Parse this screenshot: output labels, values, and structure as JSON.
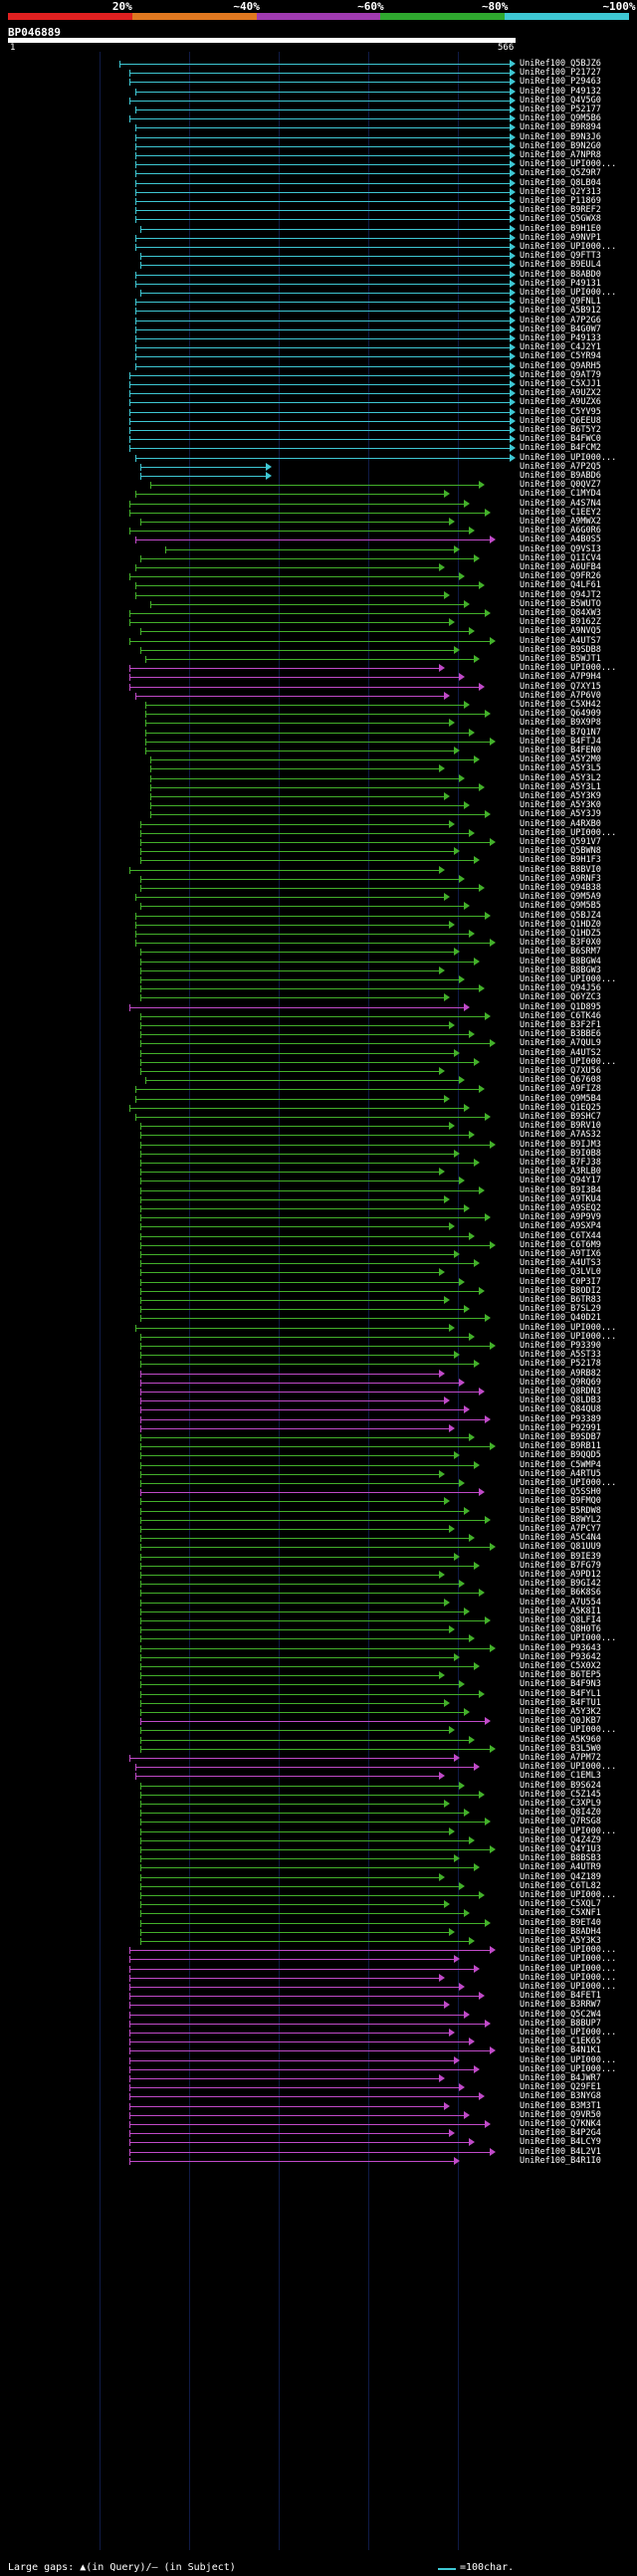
{
  "legend": {
    "marks": [
      "20%",
      "~40%",
      "~60%",
      "~80%",
      "~100%"
    ],
    "bands": [
      {
        "label": "20%",
        "color": "#e02020"
      },
      {
        "label": "40%",
        "color": "#e07820"
      },
      {
        "label": "60%",
        "color": "#a03bb0"
      },
      {
        "label": "80%",
        "color": "#2fa82f"
      },
      {
        "label": "100%",
        "color": "#3ec7d3"
      }
    ]
  },
  "query": {
    "name": "BP046889",
    "start": "1",
    "end": "566"
  },
  "colors": {
    "cyan": "#3ec7d3",
    "green": "#43b02a",
    "magenta": "#c04ac8",
    "tick": "#f0f0f0"
  },
  "hits": [
    [
      "UniRef100_Q5BJZ6",
      "c",
      0.22
    ],
    [
      "UniRef100_P21727",
      "c",
      0.24
    ],
    [
      "UniRef100_P29463",
      "c",
      0.24
    ],
    [
      "UniRef100_P49132",
      "c",
      0.25
    ],
    [
      "UniRef100_Q4V5G0",
      "c",
      0.24
    ],
    [
      "UniRef100_P52177",
      "c",
      0.25
    ],
    [
      "UniRef100_Q9M5B6",
      "c",
      0.24
    ],
    [
      "UniRef100_B9R894",
      "c",
      0.25
    ],
    [
      "UniRef100_B9N3J6",
      "c",
      0.25
    ],
    [
      "UniRef100_B9N2G0",
      "c",
      0.25
    ],
    [
      "UniRef100_A7NPR8",
      "c",
      0.25
    ],
    [
      "UniRef100_UPI000...",
      "c",
      0.25
    ],
    [
      "UniRef100_Q5Z9R7",
      "c",
      0.25
    ],
    [
      "UniRef100_Q8LB04",
      "c",
      0.25
    ],
    [
      "UniRef100_Q2Y313",
      "c",
      0.25
    ],
    [
      "UniRef100_P11869",
      "c",
      0.25
    ],
    [
      "UniRef100_B9REF2",
      "c",
      0.25
    ],
    [
      "UniRef100_Q5GWX8",
      "c",
      0.25
    ],
    [
      "UniRef100_B9H1E0",
      "c",
      0.26
    ],
    [
      "UniRef100_A9NVP1",
      "c",
      0.25
    ],
    [
      "UniRef100_UPI000...",
      "c",
      0.25
    ],
    [
      "UniRef100_Q9FTT3",
      "c",
      0.26
    ],
    [
      "UniRef100_B9EUL4",
      "c",
      0.26
    ],
    [
      "UniRef100_B8ABD0",
      "c",
      0.25
    ],
    [
      "UniRef100_P49131",
      "c",
      0.25
    ],
    [
      "UniRef100_UPI000...",
      "c",
      0.26
    ],
    [
      "UniRef100_Q9FNL1",
      "c",
      0.25
    ],
    [
      "UniRef100_A5B912",
      "c",
      0.25
    ],
    [
      "UniRef100_A7P2G6",
      "c",
      0.25
    ],
    [
      "UniRef100_B4G0W7",
      "c",
      0.25
    ],
    [
      "UniRef100_P49133",
      "c",
      0.25
    ],
    [
      "UniRef100_C4J2Y1",
      "c",
      0.25
    ],
    [
      "UniRef100_C5YR94",
      "c",
      0.25
    ],
    [
      "UniRef100_Q9ARH5",
      "c",
      0.25
    ],
    [
      "UniRef100_Q9AT79",
      "c",
      0.24
    ],
    [
      "UniRef100_C5XJJ1",
      "c",
      0.24
    ],
    [
      "UniRef100_A9UZX2",
      "c",
      0.24
    ],
    [
      "UniRef100_A9UZX6",
      "c",
      0.24
    ],
    [
      "UniRef100_C5YV95",
      "c",
      0.24
    ],
    [
      "UniRef100_Q6EEU8",
      "c",
      0.24
    ],
    [
      "UniRef100_B6T5Y2",
      "c",
      0.24
    ],
    [
      "UniRef100_B4FWC0",
      "c",
      0.24
    ],
    [
      "UniRef100_B4FCM2",
      "c",
      0.24
    ],
    [
      "UniRef100_UPI000...",
      "c",
      0.25
    ],
    [
      "UniRef100_A7P2Q5",
      "c",
      0.26
    ],
    [
      "UniRef100_B9ABD6",
      "c",
      0.26
    ],
    [
      "UniRef100_Q0QVZ7",
      "g",
      0.28
    ],
    [
      "UniRef100_C1MYD4",
      "g",
      0.25
    ],
    [
      "UniRef100_A4S7N4",
      "g",
      0.24
    ],
    [
      "UniRef100_C1EEY2",
      "g",
      0.24
    ],
    [
      "UniRef100_A9MWX2",
      "g",
      0.26
    ],
    [
      "UniRef100_A6G0R6",
      "g",
      0.24
    ],
    [
      "UniRef100_A4B0S5",
      "m",
      0.25
    ],
    [
      "UniRef100_Q9VSI3",
      "g",
      0.31
    ],
    [
      "UniRef100_Q1ICV4",
      "g",
      0.26
    ],
    [
      "UniRef100_A6UFB4",
      "g",
      0.25
    ],
    [
      "UniRef100_Q9FR26",
      "g",
      0.24
    ],
    [
      "UniRef100_Q4LF61",
      "g",
      0.25
    ],
    [
      "UniRef100_Q94JT2",
      "g",
      0.25
    ],
    [
      "UniRef100_B5WUTO",
      "g",
      0.28
    ],
    [
      "UniRef100_Q84XW3",
      "g",
      0.24
    ],
    [
      "UniRef100_B9162Z",
      "g",
      0.24
    ],
    [
      "UniRef100_A9NVQ5",
      "g",
      0.26
    ],
    [
      "UniRef100_A4UTS7",
      "g",
      0.24
    ],
    [
      "UniRef100_B9SDB8",
      "g",
      0.26
    ],
    [
      "UniRef100_B5WJT1",
      "g",
      0.27
    ],
    [
      "UniRef100_UPI000...",
      "m",
      0.24
    ],
    [
      "UniRef100_A7P9H4",
      "m",
      0.24
    ],
    [
      "UniRef100_Q7XY15",
      "m",
      0.24
    ],
    [
      "UniRef100_A7P6V0",
      "m",
      0.25
    ],
    [
      "UniRef100_C5XH42",
      "g",
      0.27
    ],
    [
      "UniRef100_Q64909",
      "g",
      0.27
    ],
    [
      "UniRef100_B9X9P8",
      "g",
      0.27
    ],
    [
      "UniRef100_B7Q1N7",
      "g",
      0.27
    ],
    [
      "UniRef100_B4FTJ4",
      "g",
      0.27
    ],
    [
      "UniRef100_B4FEN0",
      "g",
      0.27
    ],
    [
      "UniRef100_A5Y2M0",
      "g",
      0.28
    ],
    [
      "UniRef100_A5Y3L5",
      "g",
      0.28
    ],
    [
      "UniRef100_A5Y3L2",
      "g",
      0.28
    ],
    [
      "UniRef100_A5Y3L1",
      "g",
      0.28
    ],
    [
      "UniRef100_A5Y3K9",
      "g",
      0.28
    ],
    [
      "UniRef100_A5Y3K0",
      "g",
      0.28
    ],
    [
      "UniRef100_A5Y3J9",
      "g",
      0.28
    ],
    [
      "UniRef100_A4RXB0",
      "g",
      0.26
    ],
    [
      "UniRef100_UPI000...",
      "g",
      0.26
    ],
    [
      "UniRef100_Q591V7",
      "g",
      0.26
    ],
    [
      "UniRef100_Q5BWN8",
      "g",
      0.26
    ],
    [
      "UniRef100_B9H1F3",
      "g",
      0.26
    ],
    [
      "UniRef100_B8BVI0",
      "g",
      0.24
    ],
    [
      "UniRef100_A9RNF3",
      "g",
      0.26
    ],
    [
      "UniRef100_Q94B38",
      "g",
      0.26
    ],
    [
      "UniRef100_Q9M5A9",
      "g",
      0.25
    ],
    [
      "UniRef100_Q9M5B5",
      "g",
      0.26
    ],
    [
      "UniRef100_Q5BJZ4",
      "g",
      0.25
    ],
    [
      "UniRef100_Q1HDZ0",
      "g",
      0.25
    ],
    [
      "UniRef100_Q1HDZ5",
      "g",
      0.25
    ],
    [
      "UniRef100_B3F0X0",
      "g",
      0.25
    ],
    [
      "UniRef100_B6SRM7",
      "g",
      0.26
    ],
    [
      "UniRef100_B8BGW4",
      "g",
      0.26
    ],
    [
      "UniRef100_B8BGW3",
      "g",
      0.26
    ],
    [
      "UniRef100_UPI000...",
      "g",
      0.26
    ],
    [
      "UniRef100_Q94J56",
      "g",
      0.26
    ],
    [
      "UniRef100_Q6YZC3",
      "g",
      0.26
    ],
    [
      "UniRef100_Q1D895",
      "m",
      0.24
    ],
    [
      "UniRef100_C6TK46",
      "g",
      0.26
    ],
    [
      "UniRef100_B3F2F1",
      "g",
      0.26
    ],
    [
      "UniRef100_B3BBE6",
      "g",
      0.26
    ],
    [
      "UniRef100_A7QUL9",
      "g",
      0.26
    ],
    [
      "UniRef100_A4UTS2",
      "g",
      0.26
    ],
    [
      "UniRef100_UPI000...",
      "g",
      0.26
    ],
    [
      "UniRef100_Q7XU56",
      "g",
      0.26
    ],
    [
      "UniRef100_Q67608",
      "g",
      0.27
    ],
    [
      "UniRef100_A9FIZ8",
      "g",
      0.25
    ],
    [
      "UniRef100_Q9M5B4",
      "g",
      0.25
    ],
    [
      "UniRef100_Q1EQ25",
      "g",
      0.24
    ],
    [
      "UniRef100_B9SHC7",
      "g",
      0.25
    ],
    [
      "UniRef100_B9RV10",
      "g",
      0.26
    ],
    [
      "UniRef100_A7AS32",
      "g",
      0.26
    ],
    [
      "UniRef100_B9IJM3",
      "g",
      0.26
    ],
    [
      "UniRef100_B9I0B8",
      "g",
      0.26
    ],
    [
      "UniRef100_B7FJ38",
      "g",
      0.26
    ],
    [
      "UniRef100_A3RLB0",
      "g",
      0.26
    ],
    [
      "UniRef100_Q94Y17",
      "g",
      0.26
    ],
    [
      "UniRef100_B9I3B4",
      "g",
      0.26
    ],
    [
      "UniRef100_A9TKU4",
      "g",
      0.26
    ],
    [
      "UniRef100_A9SEQ2",
      "g",
      0.26
    ],
    [
      "UniRef100_A9P9V9",
      "g",
      0.26
    ],
    [
      "UniRef100_A9SXP4",
      "g",
      0.26
    ],
    [
      "UniRef100_C6TX44",
      "g",
      0.26
    ],
    [
      "UniRef100_C6T6M9",
      "g",
      0.26
    ],
    [
      "UniRef100_A9TIX6",
      "g",
      0.26
    ],
    [
      "UniRef100_A4UTS3",
      "g",
      0.26
    ],
    [
      "UniRef100_Q3LVL0",
      "g",
      0.26
    ],
    [
      "UniRef100_C0P3I7",
      "g",
      0.26
    ],
    [
      "UniRef100_B8ODI2",
      "g",
      0.26
    ],
    [
      "UniRef100_B6TR83",
      "g",
      0.26
    ],
    [
      "UniRef100_B7SL29",
      "g",
      0.26
    ],
    [
      "UniRef100_Q40D21",
      "g",
      0.26
    ],
    [
      "UniRef100_UPI000...",
      "g",
      0.25
    ],
    [
      "UniRef100_UPI000...",
      "g",
      0.26
    ],
    [
      "UniRef100_P93390",
      "g",
      0.26
    ],
    [
      "UniRef100_A5ST33",
      "g",
      0.26
    ],
    [
      "UniRef100_P52178",
      "g",
      0.26
    ],
    [
      "UniRef100_A9RB82",
      "m",
      0.26
    ],
    [
      "UniRef100_Q9RQ69",
      "m",
      0.26
    ],
    [
      "UniRef100_Q8RDN3",
      "m",
      0.26
    ],
    [
      "UniRef100_Q8LDB3",
      "m",
      0.26
    ],
    [
      "UniRef100_Q84QU8",
      "m",
      0.26
    ],
    [
      "UniRef100_P93389",
      "m",
      0.26
    ],
    [
      "UniRef100_P92991",
      "m",
      0.26
    ],
    [
      "UniRef100_B9SDB7",
      "g",
      0.26
    ],
    [
      "UniRef100_B9RB11",
      "g",
      0.26
    ],
    [
      "UniRef100_B9QQD5",
      "g",
      0.26
    ],
    [
      "UniRef100_C5WMP4",
      "g",
      0.26
    ],
    [
      "UniRef100_A4RTU5",
      "g",
      0.26
    ],
    [
      "UniRef100_UPI000...",
      "g",
      0.26
    ],
    [
      "UniRef100_Q5SSH0",
      "m",
      0.26
    ],
    [
      "UniRef100_B9FMQ0",
      "g",
      0.26
    ],
    [
      "UniRef100_B5RDW8",
      "g",
      0.26
    ],
    [
      "UniRef100_B8WYL2",
      "g",
      0.26
    ],
    [
      "UniRef100_A7PCY7",
      "g",
      0.26
    ],
    [
      "UniRef100_A5C4N4",
      "g",
      0.26
    ],
    [
      "UniRef100_Q81UU9",
      "g",
      0.26
    ],
    [
      "UniRef100_B9IE39",
      "g",
      0.26
    ],
    [
      "UniRef100_B7FG79",
      "g",
      0.26
    ],
    [
      "UniRef100_A9PD12",
      "g",
      0.26
    ],
    [
      "UniRef100_B9GI42",
      "g",
      0.26
    ],
    [
      "UniRef100_B6K8S6",
      "g",
      0.26
    ],
    [
      "UniRef100_A7U554",
      "g",
      0.26
    ],
    [
      "UniRef100_A5K8I1",
      "g",
      0.26
    ],
    [
      "UniRef100_Q8LFI4",
      "g",
      0.26
    ],
    [
      "UniRef100_Q8H0T6",
      "g",
      0.26
    ],
    [
      "UniRef100_UPI000...",
      "g",
      0.26
    ],
    [
      "UniRef100_P93643",
      "g",
      0.26
    ],
    [
      "UniRef100_P93642",
      "g",
      0.26
    ],
    [
      "UniRef100_C5X0X2",
      "g",
      0.26
    ],
    [
      "UniRef100_B6TEP5",
      "g",
      0.26
    ],
    [
      "UniRef100_B4F9N3",
      "g",
      0.26
    ],
    [
      "UniRef100_B4FYL1",
      "g",
      0.26
    ],
    [
      "UniRef100_B4FTU1",
      "g",
      0.26
    ],
    [
      "UniRef100_A5Y3K2",
      "g",
      0.26
    ],
    [
      "UniRef100_Q0JKB7",
      "m",
      0.26
    ],
    [
      "UniRef100_UPI000...",
      "g",
      0.26
    ],
    [
      "UniRef100_A5K960",
      "g",
      0.26
    ],
    [
      "UniRef100_B3L5W0",
      "g",
      0.26
    ],
    [
      "UniRef100_A7PM72",
      "m",
      0.24
    ],
    [
      "UniRef100_UPI000...",
      "m",
      0.25
    ],
    [
      "UniRef100_C1EML3",
      "m",
      0.25
    ],
    [
      "UniRef100_B9S624",
      "g",
      0.26
    ],
    [
      "UniRef100_C5Z145",
      "g",
      0.26
    ],
    [
      "UniRef100_C3XPL9",
      "g",
      0.26
    ],
    [
      "UniRef100_Q8I4Z0",
      "g",
      0.26
    ],
    [
      "UniRef100_Q7RSG8",
      "g",
      0.26
    ],
    [
      "UniRef100_UPI000...",
      "g",
      0.26
    ],
    [
      "UniRef100_Q4Z4Z9",
      "g",
      0.26
    ],
    [
      "UniRef100_Q4Y1U3",
      "g",
      0.26
    ],
    [
      "UniRef100_B8BSB3",
      "g",
      0.26
    ],
    [
      "UniRef100_A4UTR9",
      "g",
      0.26
    ],
    [
      "UniRef100_Q4Z189",
      "g",
      0.26
    ],
    [
      "UniRef100_C6TL82",
      "g",
      0.26
    ],
    [
      "UniRef100_UPI000...",
      "g",
      0.26
    ],
    [
      "UniRef100_C5XQL7",
      "g",
      0.26
    ],
    [
      "UniRef100_C5XNF1",
      "g",
      0.26
    ],
    [
      "UniRef100_B9ET40",
      "g",
      0.26
    ],
    [
      "UniRef100_B8ADH4",
      "g",
      0.26
    ],
    [
      "UniRef100_A5Y3K3",
      "g",
      0.26
    ],
    [
      "UniRef100_UPI000...",
      "m",
      0.24
    ],
    [
      "UniRef100_UPI000...",
      "m",
      0.24
    ],
    [
      "UniRef100_UPI000...",
      "m",
      0.24
    ],
    [
      "UniRef100_UPI000...",
      "m",
      0.24
    ],
    [
      "UniRef100_UPI000...",
      "m",
      0.24
    ],
    [
      "UniRef100_B4FET1",
      "m",
      0.24
    ],
    [
      "UniRef100_B3RRW7",
      "m",
      0.24
    ],
    [
      "UniRef100_Q5C2W4",
      "m",
      0.24
    ],
    [
      "UniRef100_B8BUP7",
      "m",
      0.24
    ],
    [
      "UniRef100_UPI000...",
      "m",
      0.24
    ],
    [
      "UniRef100_C1EK65",
      "m",
      0.24
    ],
    [
      "UniRef100_B4N1K1",
      "m",
      0.24
    ],
    [
      "UniRef100_UPI000...",
      "m",
      0.24
    ],
    [
      "UniRef100_UPI000...",
      "m",
      0.24
    ],
    [
      "UniRef100_B4JWR7",
      "m",
      0.24
    ],
    [
      "UniRef100_Q29FE1",
      "m",
      0.24
    ],
    [
      "UniRef100_B3NYG8",
      "m",
      0.24
    ],
    [
      "UniRef100_B3M3T1",
      "m",
      0.24
    ],
    [
      "UniRef100_Q9VR50",
      "m",
      0.24
    ],
    [
      "UniRef100_Q7KNK4",
      "m",
      0.24
    ],
    [
      "UniRef100_B4P2G4",
      "m",
      0.24
    ],
    [
      "UniRef100_B4LCY9",
      "m",
      0.24
    ],
    [
      "UniRef100_B4L2V1",
      "m",
      0.24
    ],
    [
      "UniRef100_B4R1I0",
      "m",
      0.24
    ]
  ],
  "footer": {
    "gaps_text": "Large gaps: ▲(in Query)/– (in Subject)",
    "scale_text": "=100char."
  }
}
